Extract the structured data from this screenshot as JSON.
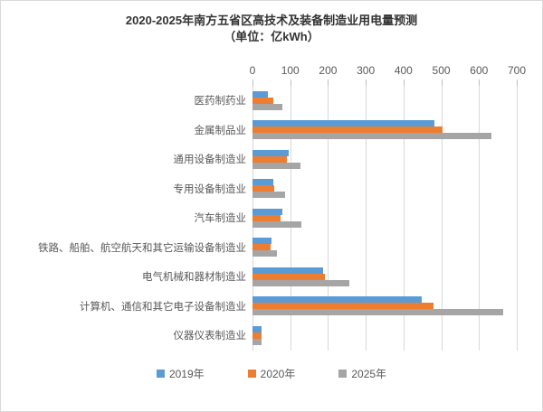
{
  "chart_data": {
    "type": "bar",
    "orientation": "horizontal",
    "title": "2020-2025年南方五省区高技术及装备制造业用电量预测",
    "subtitle": "（单位：亿kWh）",
    "unit": "亿kWh",
    "categories": [
      "医药制药业",
      "金属制品业",
      "通用设备制造业",
      "专用设备制造业",
      "汽车制造业",
      "铁路、船舶、航空航天和其它运输设备制造业",
      "电气机械和器材制造业",
      "计算机、通信和其它电子设备制造业",
      "仪器仪表制造业"
    ],
    "series": [
      {
        "name": "2019年",
        "color": "#5B9BD5",
        "values": [
          40,
          483,
          95,
          56,
          78,
          51,
          187,
          448,
          24
        ]
      },
      {
        "name": "2020年",
        "color": "#ED7D31",
        "values": [
          54,
          504,
          90,
          58,
          74,
          48,
          191,
          480,
          23
        ]
      },
      {
        "name": "2025年",
        "color": "#A5A5A5",
        "values": [
          78,
          632,
          128,
          86,
          130,
          64,
          257,
          663,
          25
        ]
      }
    ],
    "xlim": [
      0,
      700
    ],
    "xticks": [
      0,
      100,
      200,
      300,
      400,
      500,
      600,
      700
    ],
    "grid": true,
    "axis_position": "top",
    "legend_position": "bottom"
  },
  "style_colors": {
    "gridline": "#D9D9D9",
    "tick": "#BFBFBF",
    "axis_text": "#595959",
    "title_text": "#333333",
    "frame_border": "#D9D9D9"
  }
}
